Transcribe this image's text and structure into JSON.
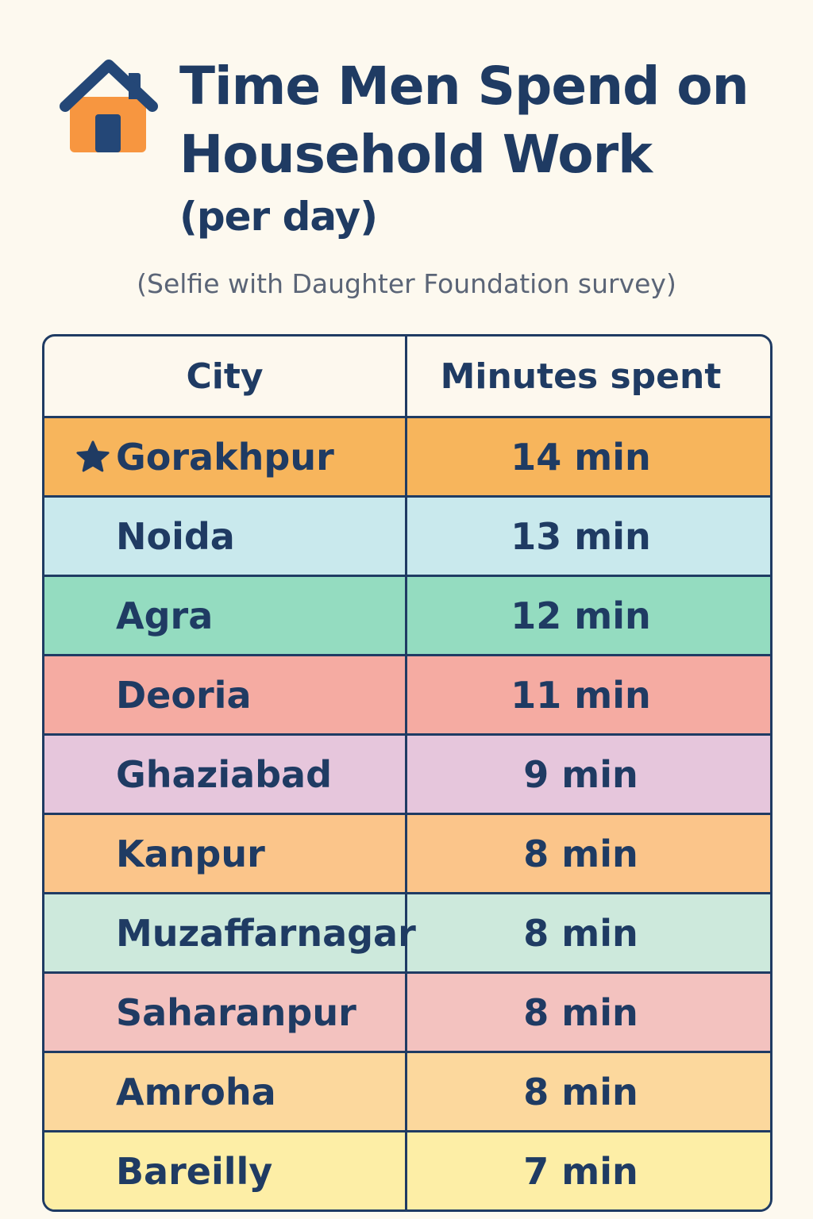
{
  "title": {
    "line1": "Time Men Spend on",
    "line2": "Household Work",
    "line3": "(per day)"
  },
  "subtitle": "(Selfie with Daughter Foundation survey)",
  "icons": {
    "header": "house-icon",
    "highlight": "star-icon"
  },
  "colors": {
    "text": "#1f3b63",
    "background": "#fdf9ef"
  },
  "chart_data": {
    "type": "table",
    "title": "Time Men Spend on Household Work (per day)",
    "columns": [
      "City",
      "Minutes spent"
    ],
    "rows": [
      {
        "city": "Gorakhpur",
        "minutes": 14,
        "label": "14 min",
        "color": "#f7b55c",
        "highlight": true
      },
      {
        "city": "Noida",
        "minutes": 13,
        "label": "13 min",
        "color": "#c9e9ed"
      },
      {
        "city": "Agra",
        "minutes": 12,
        "label": "12 min",
        "color": "#94dcc0"
      },
      {
        "city": "Deoria",
        "minutes": 11,
        "label": "11 min",
        "color": "#f5aba2"
      },
      {
        "city": "Ghaziabad",
        "minutes": 9,
        "label": "9 min",
        "color": "#e6c6dc"
      },
      {
        "city": "Kanpur",
        "minutes": 8,
        "label": "8 min",
        "color": "#fbc58a"
      },
      {
        "city": "Muzaffarnagar",
        "minutes": 8,
        "label": "8 min",
        "color": "#cde9dc"
      },
      {
        "city": "Saharanpur",
        "minutes": 8,
        "label": "8 min",
        "color": "#f3c2bf"
      },
      {
        "city": "Amroha",
        "minutes": 8,
        "label": "8 min",
        "color": "#fcd89d"
      },
      {
        "city": "Bareilly",
        "minutes": 7,
        "label": "7 min",
        "color": "#fdeea6"
      }
    ]
  }
}
